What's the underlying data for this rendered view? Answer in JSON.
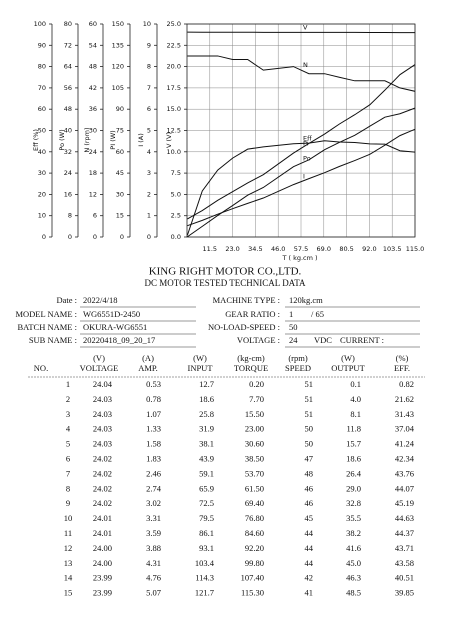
{
  "chart_data": {
    "type": "line",
    "x": [
      0.2,
      7.7,
      15.5,
      23.0,
      30.6,
      38.5,
      53.7,
      61.5,
      69.4,
      76.8,
      84.6,
      92.2,
      99.8,
      107.4,
      115.3
    ],
    "xlim": [
      0,
      115
    ],
    "xticks": [
      11.5,
      {
        "value": 23,
        "label": "23.0"
      },
      34.5,
      {
        "value": 46,
        "label": "46.0"
      },
      57.5,
      {
        "value": 69,
        "label": "69.0"
      },
      80.5,
      {
        "value": 92,
        "label": "92.0"
      },
      103.5,
      {
        "value": 115,
        "label": "115.0"
      }
    ],
    "xlabel": "T ( kg.cm )",
    "grid": true,
    "color": "#111111",
    "axes": [
      {
        "label": "Eff (%)",
        "lim": [
          0,
          100
        ],
        "ticks": [
          0,
          10,
          20,
          30,
          40,
          50,
          60,
          70,
          80,
          90,
          100
        ]
      },
      {
        "label": "Po (W)",
        "lim": [
          0,
          80
        ],
        "ticks": [
          0,
          8,
          16,
          24,
          32,
          40,
          48,
          56,
          64,
          72,
          80
        ]
      },
      {
        "label": "N (rpm)",
        "lim": [
          0,
          60
        ],
        "ticks": [
          0,
          6,
          12,
          18,
          24,
          30,
          36,
          42,
          48,
          54,
          60
        ]
      },
      {
        "label": "PI (W)",
        "lim": [
          0,
          150
        ],
        "ticks": [
          0,
          15,
          30,
          45,
          60,
          75,
          90,
          105,
          120,
          135,
          150
        ]
      },
      {
        "label": "I (A)",
        "lim": [
          0,
          10
        ],
        "ticks": [
          0,
          1,
          2,
          3,
          4,
          5,
          6,
          7,
          8,
          9,
          10
        ]
      },
      {
        "label": "V (V)",
        "lim": [
          0,
          25
        ],
        "ticks": [
          {
            "value": 0,
            "label": "0.0"
          },
          2.5,
          {
            "value": 5,
            "label": "5.0"
          },
          7.5,
          {
            "value": 10,
            "label": "10.0"
          },
          12.5,
          {
            "value": 15,
            "label": "15.0"
          },
          17.5,
          {
            "value": 20,
            "label": "20.0"
          },
          22.5,
          {
            "value": 25,
            "label": "25.0"
          }
        ]
      }
    ],
    "series": [
      {
        "name": "V",
        "axis": 5,
        "values": [
          24.04,
          24.03,
          24.03,
          24.03,
          24.03,
          24.02,
          24.02,
          24.02,
          24.02,
          24.01,
          24.01,
          24.0,
          24.0,
          23.99,
          23.99
        ]
      },
      {
        "name": "N",
        "axis": 2,
        "values": [
          51,
          51,
          51,
          50,
          50,
          47,
          48,
          46,
          46,
          45,
          44,
          44,
          44,
          42,
          41
        ]
      },
      {
        "name": "Eff",
        "axis": 0,
        "values": [
          0.82,
          21.62,
          31.43,
          37.04,
          41.24,
          42.34,
          43.76,
          44.07,
          45.19,
          44.63,
          44.37,
          43.71,
          43.58,
          40.51,
          39.85
        ]
      },
      {
        "name": "Pi",
        "axis": 3,
        "values": [
          12.7,
          18.6,
          25.8,
          31.9,
          38.1,
          43.9,
          59.1,
          65.9,
          72.5,
          79.5,
          86.1,
          93.1,
          103.4,
          114.3,
          121.7
        ]
      },
      {
        "name": "Po",
        "axis": 1,
        "values": [
          0.1,
          4.0,
          8.1,
          11.8,
          15.7,
          18.6,
          26.4,
          29.0,
          32.8,
          35.5,
          38.2,
          41.6,
          45.0,
          46.3,
          48.5
        ]
      },
      {
        "name": "I",
        "axis": 4,
        "values": [
          0.53,
          0.78,
          1.07,
          1.33,
          1.58,
          1.83,
          2.46,
          2.74,
          3.02,
          3.31,
          3.59,
          3.88,
          4.31,
          4.76,
          5.07
        ]
      }
    ]
  },
  "document": {
    "title": "KING RIGHT MOTOR CO.,LTD.",
    "subtitle": "DC MOTOR TESTED TECHNICAL DATA",
    "left_fields": [
      {
        "label": "Date :",
        "value": "2022/4/18"
      },
      {
        "label": "MODEL NAME :",
        "value": "WG6551D-2450"
      },
      {
        "label": "BATCH NAME :",
        "value": "OKURA-WG6551"
      },
      {
        "label": "SUB NAME :",
        "value": "20220418_09_20_17"
      }
    ],
    "right_fields": [
      {
        "label": "MACHINE TYPE :",
        "value": "120kg.cm"
      },
      {
        "label": "GEAR RATIO :",
        "value": "1",
        "extra": "/ 65"
      },
      {
        "label": "NO-LOAD-SPEED :",
        "value": "50"
      },
      {
        "label": "VOLTAGE :",
        "value": "24",
        "extra": "VDC"
      }
    ],
    "current_label": "CURRENT :"
  },
  "table": {
    "no_label": "NO.",
    "columns": [
      {
        "unit": "(V)",
        "name": "VOLTAGE"
      },
      {
        "unit": "(A)",
        "name": "AMP."
      },
      {
        "unit": "(W)",
        "name": "INPUT"
      },
      {
        "unit": "(kg-cm)",
        "name": "TORQUE"
      },
      {
        "unit": "(rpm)",
        "name": "SPEED"
      },
      {
        "unit": "(W)",
        "name": "OUTPUT"
      },
      {
        "unit": "(%)",
        "name": "EFF."
      }
    ],
    "rows": [
      [
        "1",
        "24.04",
        "0.53",
        "12.7",
        "0.20",
        "51",
        "0.1",
        "0.82"
      ],
      [
        "2",
        "24.03",
        "0.78",
        "18.6",
        "7.70",
        "51",
        "4.0",
        "21.62"
      ],
      [
        "3",
        "24.03",
        "1.07",
        "25.8",
        "15.50",
        "51",
        "8.1",
        "31.43"
      ],
      [
        "4",
        "24.03",
        "1.33",
        "31.9",
        "23.00",
        "50",
        "11.8",
        "37.04"
      ],
      [
        "5",
        "24.03",
        "1.58",
        "38.1",
        "30.60",
        "50",
        "15.7",
        "41.24"
      ],
      [
        "6",
        "24.02",
        "1.83",
        "43.9",
        "38.50",
        "47",
        "18.6",
        "42.34"
      ],
      [
        "7",
        "24.02",
        "2.46",
        "59.1",
        "53.70",
        "48",
        "26.4",
        "43.76"
      ],
      [
        "8",
        "24.02",
        "2.74",
        "65.9",
        "61.50",
        "46",
        "29.0",
        "44.07"
      ],
      [
        "9",
        "24.02",
        "3.02",
        "72.5",
        "69.40",
        "46",
        "32.8",
        "45.19"
      ],
      [
        "10",
        "24.01",
        "3.31",
        "79.5",
        "76.80",
        "45",
        "35.5",
        "44.63"
      ],
      [
        "11",
        "24.01",
        "3.59",
        "86.1",
        "84.60",
        "44",
        "38.2",
        "44.37"
      ],
      [
        "12",
        "24.00",
        "3.88",
        "93.1",
        "92.20",
        "44",
        "41.6",
        "43.71"
      ],
      [
        "13",
        "24.00",
        "4.31",
        "103.4",
        "99.80",
        "44",
        "45.0",
        "43.58"
      ],
      [
        "14",
        "23.99",
        "4.76",
        "114.3",
        "107.40",
        "42",
        "46.3",
        "40.51"
      ],
      [
        "15",
        "23.99",
        "5.07",
        "121.7",
        "115.30",
        "41",
        "48.5",
        "39.85"
      ]
    ]
  }
}
